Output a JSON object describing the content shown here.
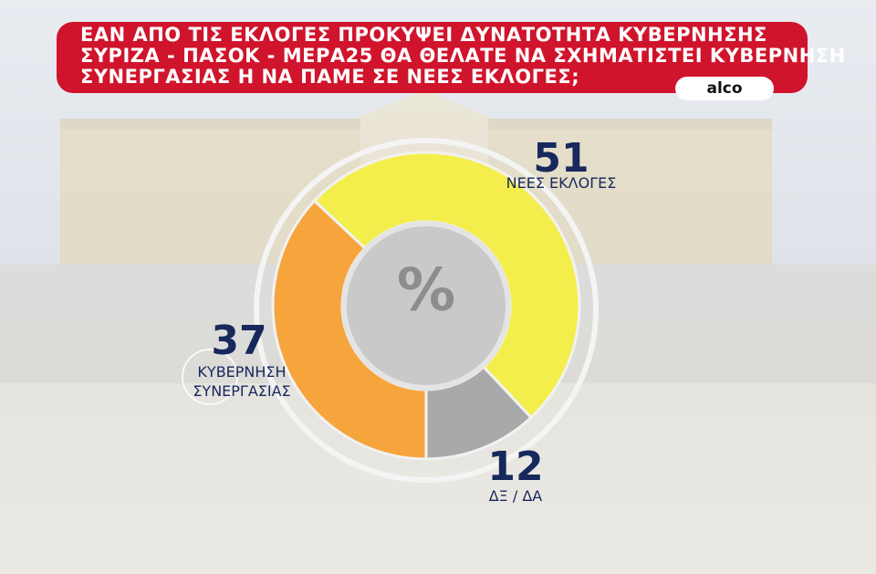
{
  "chart_data": {
    "type": "donut",
    "title": [
      "ΕΑΝ ΑΠΟ ΤΙΣ ΕΚΛΟΓΕΣ ΠΡΟΚΥΨΕΙ ΔΥΝΑΤΟΤΗΤΑ ΚΥΒΕΡΝΗΣΗΣ",
      "ΣΥΡΙΖΑ - ΠΑΣΟΚ - ΜΕΡΑ25 ΘΑ ΘΕΛΑΤΕ ΝΑ ΣΧΗΜΑΤΙΣΤΕΙ ΚΥΒΕΡΝΗΣΗ",
      "ΣΥΝΕΡΓΑΣΙΑΣ Η ΝΑ ΠΑΜΕ ΣΕ ΝΕΕΣ ΕΚΛΟΓΕΣ;"
    ],
    "source": "alco",
    "center_label": "%",
    "categories": [
      "ΝΕΕΣ ΕΚΛΟΓΕΣ",
      "ΔΞ / ΔΑ",
      "ΚΥΒΕΡΝΗΣΗ ΣΥΝΕΡΓΑΣΙΑΣ"
    ],
    "values": [
      51,
      12,
      37
    ],
    "colors": [
      "#f4ee4c",
      "#a9a9a9",
      "#f6a43c"
    ]
  }
}
